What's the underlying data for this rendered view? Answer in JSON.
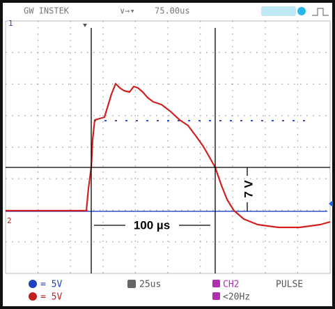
{
  "header": {
    "brand": "GW INSTEK",
    "trigger_position": "75.00us"
  },
  "markers": {
    "channel1": "1",
    "channel2": "2"
  },
  "annotations": {
    "time": "100 µs",
    "voltage": "7 V"
  },
  "footer": {
    "ch1_scale": "= 5V",
    "ch2_scale": "= 5V",
    "timebase": "25us",
    "trigger_source": "CH2",
    "trigger_type": "PULSE",
    "trigger_filter": "<20Hz"
  }
}
